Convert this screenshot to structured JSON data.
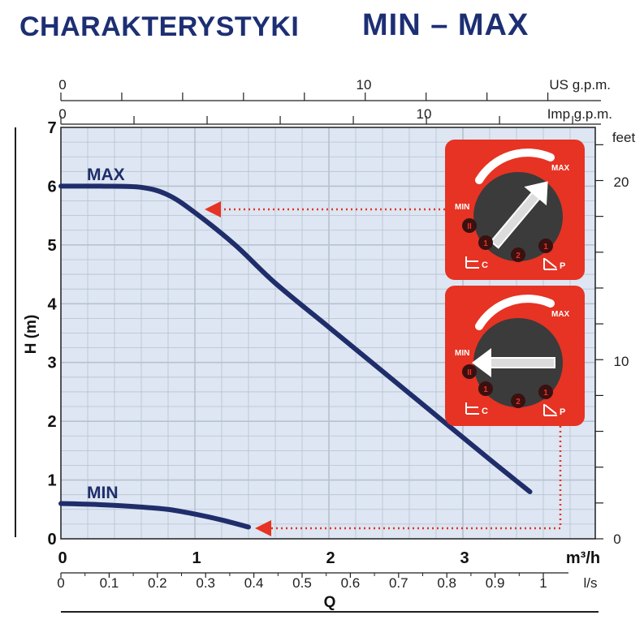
{
  "header": {
    "title_left": "CHARAKTERYSTYKI",
    "title_right": "MIN – MAX"
  },
  "colors": {
    "curve": "#1f2d6b",
    "plot_bg": "#dde6f2",
    "grid": "#b7c2cf",
    "panel": "#e63323",
    "dial": "#3b3b3b",
    "arrow": "#e63323"
  },
  "chart_data": {
    "type": "line",
    "title": "CHARAKTERYSTYKI MIN – MAX",
    "xlabel": "Q",
    "ylabel": "H (m)",
    "x_unit": "m³/h",
    "xlim": [
      0,
      4.1
    ],
    "ylim": [
      0,
      7
    ],
    "x_ticks": [
      "0",
      "1",
      "2",
      "3"
    ],
    "y_ticks": [
      "0",
      "1",
      "2",
      "3",
      "4",
      "5",
      "6",
      "7"
    ],
    "secondary_axes": {
      "ls": {
        "unit": "l/s",
        "ticks": [
          "0",
          "0.1",
          "0.2",
          "0.3",
          "0.4",
          "0.5",
          "0.6",
          "0.7",
          "0.8",
          "0.9",
          "1"
        ]
      },
      "us_gpm": {
        "unit": "US g.p.m.",
        "ticks": [
          "0",
          "10"
        ]
      },
      "imp_gpm": {
        "unit": "Imp g.p.m.",
        "ticks": [
          "0",
          "10"
        ]
      },
      "feet": {
        "unit": "feet",
        "ticks": [
          "0",
          "10",
          "20"
        ]
      }
    },
    "grid": true,
    "series": [
      {
        "name": "MAX",
        "x": [
          0,
          0.3,
          0.6,
          0.8,
          1.0,
          1.3,
          1.6,
          2.0,
          2.4,
          2.8,
          3.2,
          3.5
        ],
        "y": [
          6.0,
          6.0,
          5.98,
          5.85,
          5.55,
          5.0,
          4.35,
          3.6,
          2.85,
          2.1,
          1.35,
          0.8
        ]
      },
      {
        "name": "MIN",
        "x": [
          0,
          0.3,
          0.6,
          0.8,
          1.0,
          1.2,
          1.4
        ],
        "y": [
          0.6,
          0.58,
          0.54,
          0.5,
          0.42,
          0.32,
          0.2
        ]
      }
    ],
    "annotations": [
      "MAX",
      "MIN"
    ],
    "legend": "none"
  },
  "dial_panels": [
    {
      "max_label": "MAX",
      "min_label": "MIN",
      "mode_labels": [
        "II",
        "1",
        "2",
        "1"
      ],
      "setting": "MAX"
    },
    {
      "max_label": "MAX",
      "min_label": "MIN",
      "mode_labels": [
        "II",
        "1",
        "2",
        "1"
      ],
      "setting": "MIN"
    }
  ],
  "panel_letters": {
    "c": "C",
    "p": "P"
  }
}
